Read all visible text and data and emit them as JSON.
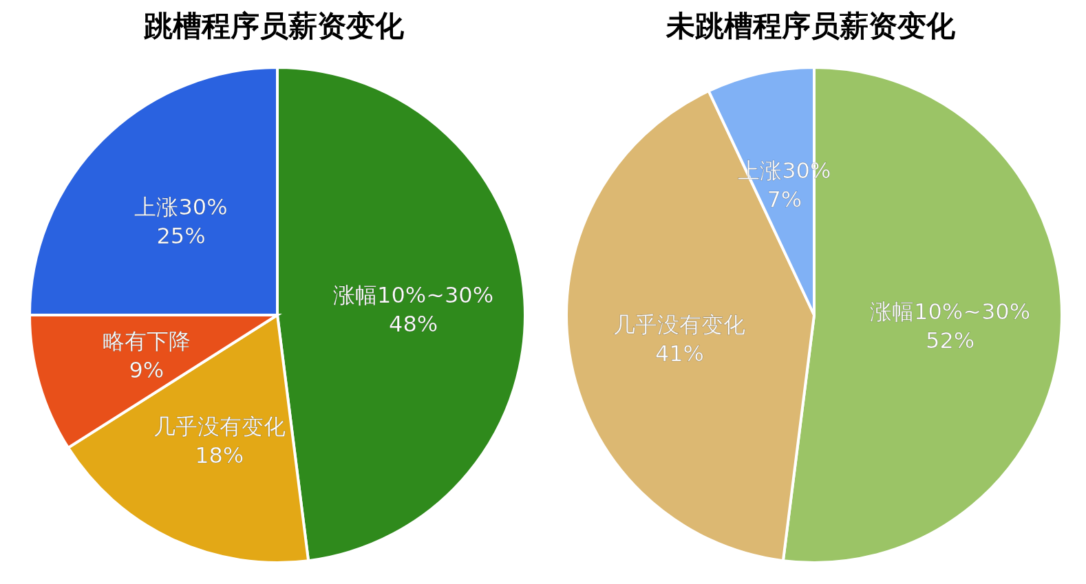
{
  "chart_data": [
    {
      "type": "pie",
      "title": "跳槽程序员薪资变化",
      "categories": [
        "涨幅10%~30%",
        "几乎没有变化",
        "略有下降",
        "上涨30%"
      ],
      "values": [
        48,
        18,
        9,
        25
      ],
      "colors": [
        "#2f8a1c",
        "#e3a816",
        "#e8501a",
        "#2a62e0"
      ],
      "value_labels": [
        "48%",
        "18%",
        "9%",
        "25%"
      ]
    },
    {
      "type": "pie",
      "title": "未跳槽程序员薪资变化",
      "categories": [
        "涨幅10%~30%",
        "几乎没有变化",
        "上涨30%"
      ],
      "values": [
        52,
        41,
        7
      ],
      "colors": [
        "#9bc466",
        "#dcb872",
        "#80b1f5"
      ],
      "value_labels": [
        "52%",
        "41%",
        "7%"
      ]
    }
  ]
}
